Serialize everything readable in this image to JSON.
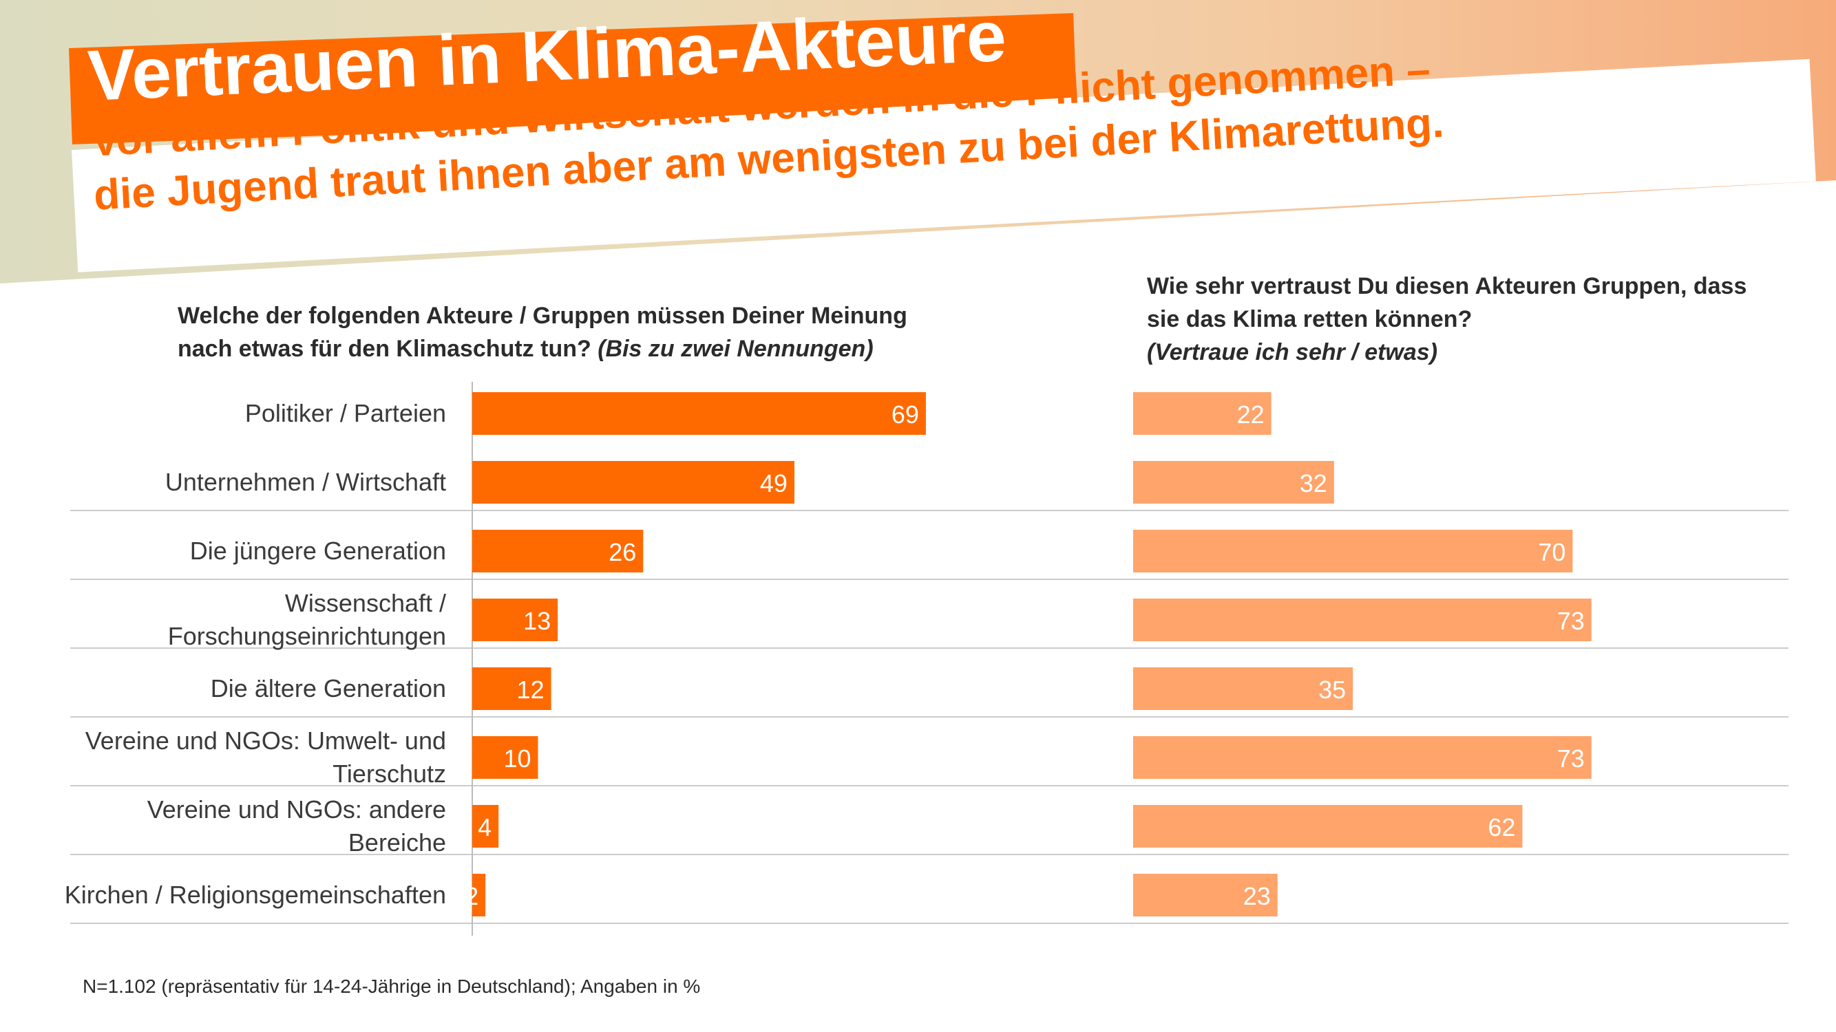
{
  "title": "Vertrauen in Klima-Akteure",
  "subtitle": {
    "line1": "Vor allem Politik und Wirtschaft werden in die Pflicht genommen –",
    "line2": "die Jugend traut ihnen aber am wenigsten zu bei der Klimarettung."
  },
  "left_question": {
    "text": "Welche der folgenden Akteure / Gruppen müssen Deiner Meinung nach etwas für den Klimaschutz tun?",
    "note": "(Bis zu zwei Nennungen)"
  },
  "right_question": {
    "text": "Wie sehr vertraust Du diesen Akteuren Gruppen, dass sie das Klima retten können?",
    "note": "(Vertraue ich sehr / etwas)"
  },
  "footnote": "N=1.102 (repräsentativ für 14-24-Jährige in Deutschland); Angaben in %",
  "colors": {
    "left_bar": "#ff6a00",
    "right_bar": "#ffa46a",
    "divider": "#cccccc",
    "axis": "#bbbbbb"
  },
  "chart_data": [
    {
      "type": "bar",
      "orientation": "horizontal",
      "title": "Welche der folgenden Akteure / Gruppen müssen Deiner Meinung nach etwas für den Klimaschutz tun? (Bis zu zwei Nennungen)",
      "categories": [
        [
          "Politiker / Parteien"
        ],
        [
          "Unternehmen / Wirtschaft"
        ],
        [
          "Die jüngere Generation"
        ],
        [
          "Wissenschaft /",
          "Forschungseinrichtungen"
        ],
        [
          "Die ältere Generation"
        ],
        [
          "Vereine und NGOs: Umwelt- und",
          "Tierschutz"
        ],
        [
          "Vereine und NGOs: andere",
          "Bereiche"
        ],
        [
          "Kirchen / Religionsgemeinschaften"
        ]
      ],
      "values": [
        69,
        49,
        26,
        13,
        12,
        10,
        4,
        2
      ],
      "xlim": [
        0,
        100
      ],
      "unit": "%"
    },
    {
      "type": "bar",
      "orientation": "horizontal",
      "title": "Wie sehr vertraust Du diesen Akteuren Gruppen, dass sie das Klima retten können? (Vertraue ich sehr / etwas)",
      "values": [
        22,
        32,
        70,
        73,
        35,
        73,
        62,
        23
      ],
      "xlim": [
        0,
        100
      ],
      "unit": "%"
    }
  ]
}
